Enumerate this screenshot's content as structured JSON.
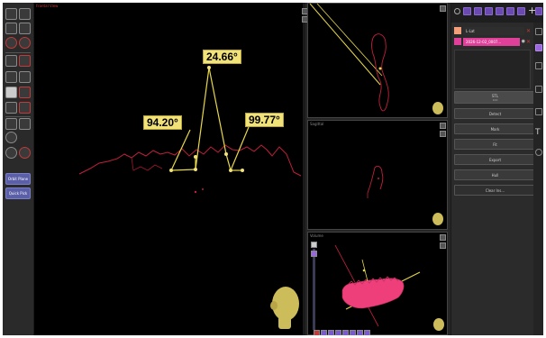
{
  "main_view": {
    "label": "Frontal View"
  },
  "measurements": {
    "angle_top": "24.66°",
    "angle_left": "94.20°",
    "angle_right": "99.77°"
  },
  "side_actions": {
    "primary": "Orbit Plane",
    "secondary": "Quick Pick"
  },
  "views": {
    "axial_label": "",
    "sagittal_label": "Sagittal",
    "volume_label": "Volume"
  },
  "layers": [
    {
      "name": "L-Lat",
      "color": "#f3a07a"
    },
    {
      "name": "2026-12-02_0007...",
      "color": "#e0409a"
    }
  ],
  "actions": {
    "stl": "STL",
    "stl_sub": "100",
    "list": [
      "Detect",
      "Mark",
      "Fit",
      "Export",
      "Hull",
      "Clear Ins..."
    ]
  },
  "colors": {
    "accent": "#6a4ab0",
    "measure": "#f2e27a",
    "contour": "#c0203a",
    "jaw": "#ee3f7a",
    "line": "#e8d84a"
  }
}
